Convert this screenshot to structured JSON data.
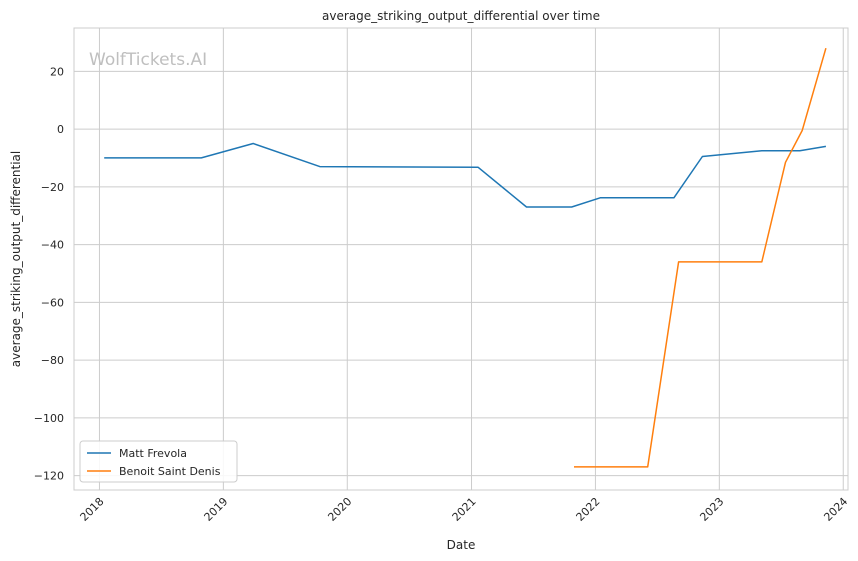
{
  "chart_data": {
    "type": "line",
    "title": "average_striking_output_differential over time",
    "xlabel": "Date",
    "ylabel": "average_striking_output_differential",
    "watermark": "WolfTickets.AI",
    "x_ticks": [
      "2018",
      "2019",
      "2020",
      "2021",
      "2022",
      "2023",
      "2024"
    ],
    "y_ticks": [
      20,
      0,
      -20,
      -40,
      -60,
      -80,
      -100,
      -120
    ],
    "y_tick_labels": [
      "20",
      "0",
      "−20",
      "−40",
      "−60",
      "−80",
      "−100",
      "−120"
    ],
    "xlim": [
      "2017-10-18",
      "2024-01-15"
    ],
    "ylim": [
      -125,
      35
    ],
    "grid": true,
    "legend_position": "lower-left",
    "series": [
      {
        "name": "Matt Frevola",
        "color": "#1f77b4",
        "points": [
          {
            "x": "2018-01-15",
            "y": -10
          },
          {
            "x": "2018-10-28",
            "y": -10
          },
          {
            "x": "2019-03-30",
            "y": -5
          },
          {
            "x": "2019-10-12",
            "y": -13
          },
          {
            "x": "2021-01-20",
            "y": -13.2
          },
          {
            "x": "2021-06-12",
            "y": -27
          },
          {
            "x": "2021-10-23",
            "y": -27
          },
          {
            "x": "2022-01-15",
            "y": -23.8
          },
          {
            "x": "2022-08-20",
            "y": -23.8
          },
          {
            "x": "2022-11-12",
            "y": -9.5
          },
          {
            "x": "2023-05-06",
            "y": -7.5
          },
          {
            "x": "2023-08-26",
            "y": -7.5
          },
          {
            "x": "2023-11-11",
            "y": -6
          }
        ]
      },
      {
        "name": "Benoit Saint Denis",
        "color": "#ff7f0e",
        "points": [
          {
            "x": "2021-10-30",
            "y": -117
          },
          {
            "x": "2022-06-04",
            "y": -117
          },
          {
            "x": "2022-09-03",
            "y": -46
          },
          {
            "x": "2023-05-06",
            "y": -46
          },
          {
            "x": "2023-07-15",
            "y": -11.5
          },
          {
            "x": "2023-09-02",
            "y": -0.5
          },
          {
            "x": "2023-11-11",
            "y": 28
          }
        ]
      }
    ]
  }
}
